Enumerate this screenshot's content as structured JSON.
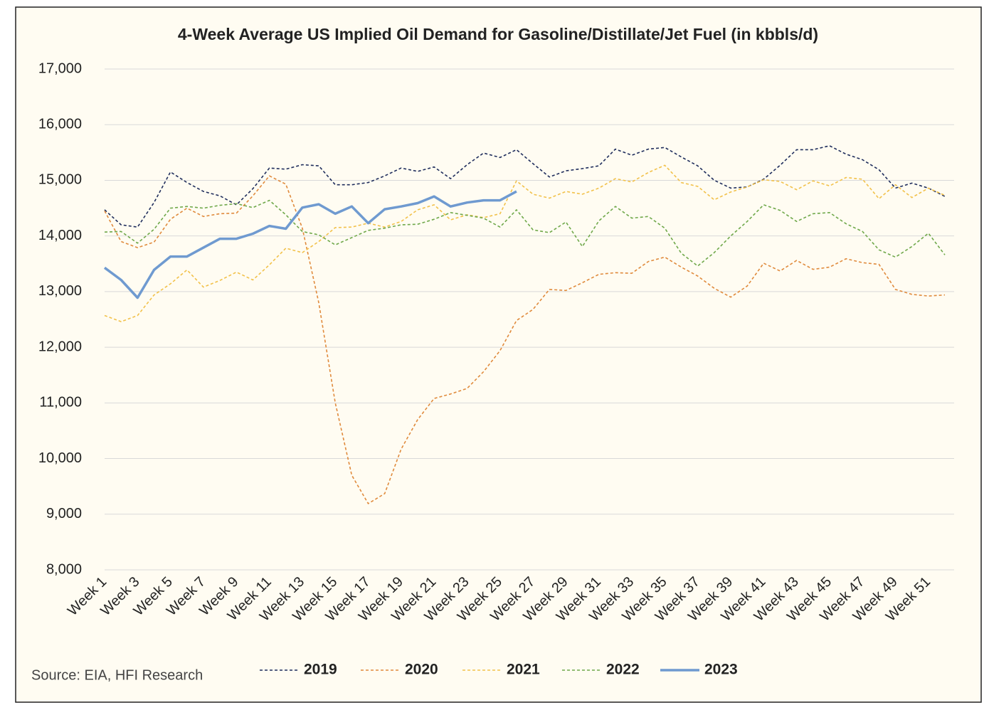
{
  "chart_data": {
    "type": "line",
    "title": "4-Week Average US Implied Oil Demand for Gasoline/Distillate/Jet Fuel (in kbbls/d)",
    "annotation": "Source: EIA, HFI Research",
    "categories": [
      "Week 1",
      null,
      "Week 3",
      null,
      "Week 5",
      null,
      "Week 7",
      null,
      "Week 9",
      null,
      "Week 11",
      null,
      "Week 13",
      null,
      "Week 15",
      null,
      "Week 17",
      null,
      "Week 19",
      null,
      "Week 21",
      null,
      "Week 23",
      null,
      "Week 25",
      null,
      "Week 27",
      null,
      "Week 29",
      null,
      "Week 31",
      null,
      "Week 33",
      null,
      "Week 35",
      null,
      "Week 37",
      null,
      "Week 39",
      null,
      "Week 41",
      null,
      "Week 43",
      null,
      "Week 45",
      null,
      "Week 47",
      null,
      "Week 49",
      null,
      "Week 51",
      null
    ],
    "series": [
      {
        "name": "2019",
        "color": "#1f2d5c",
        "dashed": true,
        "values": [
          14470,
          14200,
          14160,
          14600,
          15150,
          14960,
          14800,
          14720,
          14560,
          14850,
          15220,
          15200,
          15280,
          15260,
          14920,
          14920,
          14960,
          15080,
          15220,
          15160,
          15240,
          15030,
          15280,
          15490,
          15410,
          15550,
          15300,
          15060,
          15170,
          15210,
          15260,
          15560,
          15450,
          15560,
          15590,
          15420,
          15260,
          15000,
          14860,
          14880,
          15020,
          15270,
          15550,
          15550,
          15620,
          15470,
          15370,
          15190,
          14860,
          14950,
          14860,
          14710
        ]
      },
      {
        "name": "2020",
        "color": "#e08a3c",
        "dashed": true,
        "values": [
          14450,
          13900,
          13790,
          13890,
          14300,
          14500,
          14350,
          14400,
          14410,
          14720,
          15080,
          14930,
          14140,
          12800,
          11000,
          9700,
          9190,
          9370,
          10170,
          10700,
          11080,
          11160,
          11260,
          11560,
          11940,
          12480,
          12680,
          13040,
          13020,
          13160,
          13310,
          13340,
          13330,
          13540,
          13620,
          13440,
          13280,
          13060,
          12900,
          13100,
          13510,
          13370,
          13560,
          13400,
          13440,
          13590,
          13520,
          13490,
          13040,
          12950,
          12920,
          12940
        ]
      },
      {
        "name": "2021",
        "color": "#f2c14a",
        "dashed": true,
        "values": [
          12570,
          12460,
          12570,
          12940,
          13140,
          13390,
          13080,
          13200,
          13350,
          13210,
          13480,
          13780,
          13700,
          13900,
          14150,
          14160,
          14230,
          14160,
          14260,
          14470,
          14560,
          14290,
          14380,
          14330,
          14400,
          14990,
          14750,
          14680,
          14800,
          14750,
          14860,
          15030,
          14970,
          15140,
          15270,
          14960,
          14890,
          14650,
          14790,
          14880,
          15010,
          14980,
          14830,
          14990,
          14900,
          15050,
          15020,
          14670,
          14920,
          14690,
          14860,
          14730
        ]
      },
      {
        "name": "2022",
        "color": "#6fa84a",
        "dashed": true,
        "values": [
          14070,
          14080,
          13870,
          14120,
          14500,
          14530,
          14500,
          14550,
          14580,
          14510,
          14640,
          14380,
          14080,
          14020,
          13840,
          13970,
          14100,
          14140,
          14200,
          14210,
          14300,
          14420,
          14370,
          14320,
          14160,
          14470,
          14110,
          14060,
          14250,
          13810,
          14270,
          14530,
          14320,
          14350,
          14140,
          13690,
          13460,
          13700,
          14000,
          14260,
          14560,
          14460,
          14260,
          14400,
          14420,
          14220,
          14080,
          13750,
          13620,
          13810,
          14050,
          13660
        ]
      },
      {
        "name": "2023",
        "color": "#6f9ad0",
        "dashed": false,
        "values": [
          13430,
          13210,
          12890,
          13390,
          13630,
          13630,
          13790,
          13950,
          13950,
          14040,
          14180,
          14130,
          14510,
          14570,
          14400,
          14530,
          14230,
          14480,
          14530,
          14590,
          14710,
          14530,
          14600,
          14640,
          14640,
          14800,
          null,
          null,
          null,
          null,
          null,
          null,
          null,
          null,
          null,
          null,
          null,
          null,
          null,
          null,
          null,
          null,
          null,
          null,
          null,
          null,
          null,
          null,
          null,
          null,
          null,
          null
        ]
      }
    ],
    "ylim": [
      8000,
      17000
    ],
    "yticks": [
      {
        "value": 8000,
        "label": "8,000"
      },
      {
        "value": 9000,
        "label": "9,000"
      },
      {
        "value": 10000,
        "label": "10,000"
      },
      {
        "value": 11000,
        "label": "11,000"
      },
      {
        "value": 12000,
        "label": "12,000"
      },
      {
        "value": 13000,
        "label": "13,000"
      },
      {
        "value": 14000,
        "label": "14,000"
      },
      {
        "value": 15000,
        "label": "15,000"
      },
      {
        "value": 16000,
        "label": "16,000"
      },
      {
        "value": 17000,
        "label": "17,000"
      }
    ],
    "grid": true,
    "legend": "bottom"
  }
}
